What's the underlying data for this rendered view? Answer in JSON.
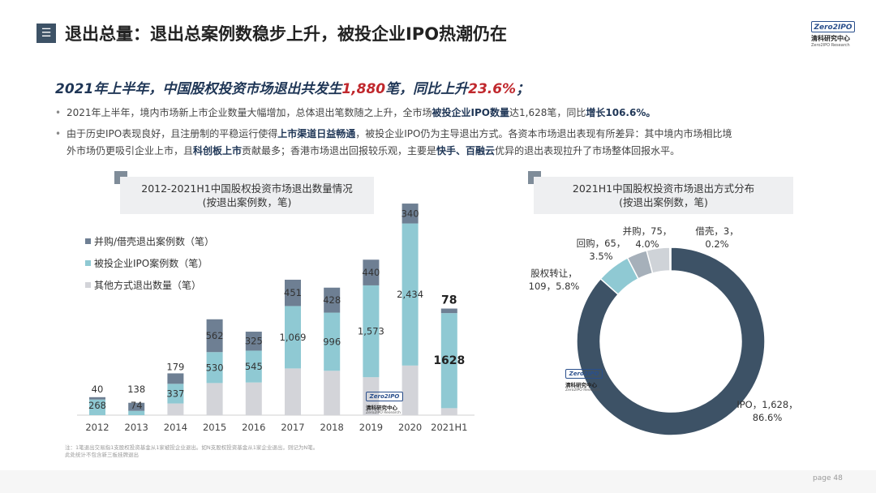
{
  "header": {
    "menu_glyph": "☰",
    "title": "退出总量：退出总案例数稳步上升，被投企业IPO热潮仍在"
  },
  "logo": {
    "badge": "Zero2IPO",
    "cn": "清科研究中心",
    "en": "Zero2IPO Research"
  },
  "headline": {
    "prefix": "2021年上半年，中国股权投资市场退出共发生",
    "count": "1,880",
    "middle": "笔，同比上升",
    "rate": "23.6%",
    "suffix": "；"
  },
  "bullets": [
    {
      "dot": "•",
      "p1": "2021年上半年，境内市场新上市企业数量大幅增加，总体退出笔数随之上升，全市场",
      "b1": "被投企业IPO数量",
      "p2": "达1,628笔，同比",
      "b2": "增长106.6%。"
    },
    {
      "dot": "•",
      "p1": "由于历史IPO表现良好，且注册制的平稳运行使得",
      "b1": "上市渠道日益畅通",
      "p2": "，被投企业IPO仍为主导退出方式。各资本市场退出表现有所差异：其中境内市场相比境"
    },
    {
      "p1": "外市场仍更吸引企业上市，且",
      "b1": "科创板上市",
      "p2": "贡献最多；香港市场退出回报较乐观，主要是",
      "b2": "快手、百融云",
      "p3": "优异的退出表现拉升了市场整体回报水平。"
    }
  ],
  "left_panel": {
    "title_line1": "2012-2021H1中国股权投资市场退出数量情况",
    "title_line2": "(按退出案例数，笔)"
  },
  "right_panel": {
    "title_line1": "2021H1中国股权投资市场退出方式分布",
    "title_line2": "(按退出案例数，笔)"
  },
  "colors": {
    "ma": "#6e7f93",
    "ipo": "#8fc9d3",
    "other": "#d3d4d9",
    "dark": "#3d5266",
    "boxbg": "#eeeff1"
  },
  "chart_data": [
    {
      "type": "bar",
      "stacked": true,
      "title": "2012-2021H1中国股权投资市场退出数量情况 (按退出案例数，笔)",
      "categories": [
        "2012",
        "2013",
        "2014",
        "2015",
        "2016",
        "2017",
        "2018",
        "2019",
        "2020",
        "2021H1"
      ],
      "series": [
        {
          "name": "其他方式退出数量（笔）",
          "values": [
            null,
            null,
            null,
            null,
            null,
            null,
            null,
            null,
            null,
            null
          ]
        },
        {
          "name": "被投企业IPO案例数（笔）",
          "values": [
            268,
            74,
            337,
            530,
            545,
            1069,
            996,
            1573,
            2434,
            1628
          ]
        },
        {
          "name": "并购/借壳退出案例数（笔）",
          "values": [
            40,
            138,
            179,
            562,
            325,
            451,
            428,
            440,
            340,
            78
          ]
        }
      ],
      "legend": [
        "并购/借壳退出案例数（笔）",
        "被投企业IPO案例数（笔）",
        "其他方式退出数量（笔）"
      ],
      "ipo_labels": [
        "268",
        "74",
        "337",
        "530",
        "545",
        "1,069",
        "996",
        "1,573",
        "2,434",
        "1628"
      ],
      "ma_labels": [
        "40",
        "138",
        "179",
        "562",
        "325",
        "451",
        "428",
        "440",
        "340",
        "78"
      ],
      "legend_position": "top-left"
    },
    {
      "type": "pie",
      "donut": true,
      "title": "2021H1中国股权投资市场退出方式分布 (按退出案例数，笔)",
      "slices": [
        {
          "label": "IPO",
          "value": 1628,
          "pct": "86.6%",
          "text1": "IPO，1,628，",
          "text2": "86.6%"
        },
        {
          "label": "股权转让",
          "value": 109,
          "pct": "5.8%",
          "text1": "股权转让，",
          "text2": "109，5.8%"
        },
        {
          "label": "回购",
          "value": 65,
          "pct": "3.5%",
          "text1": "回购，65，",
          "text2": "3.5%"
        },
        {
          "label": "并购",
          "value": 75,
          "pct": "4.0%",
          "text1": "并购，75，",
          "text2": "4.0%"
        },
        {
          "label": "借壳",
          "value": 3,
          "pct": "0.2%",
          "text1": "借壳，3，",
          "text2": "0.2%"
        }
      ]
    }
  ],
  "footnote": {
    "line1": "注：1笔退出交易指1支股权投资基金从1家被投企业退出。如N支股权投资基金从1家企业退出，则记为N笔。",
    "line2": "此处统计不包含新三板挂牌退出"
  },
  "page": "page  48"
}
